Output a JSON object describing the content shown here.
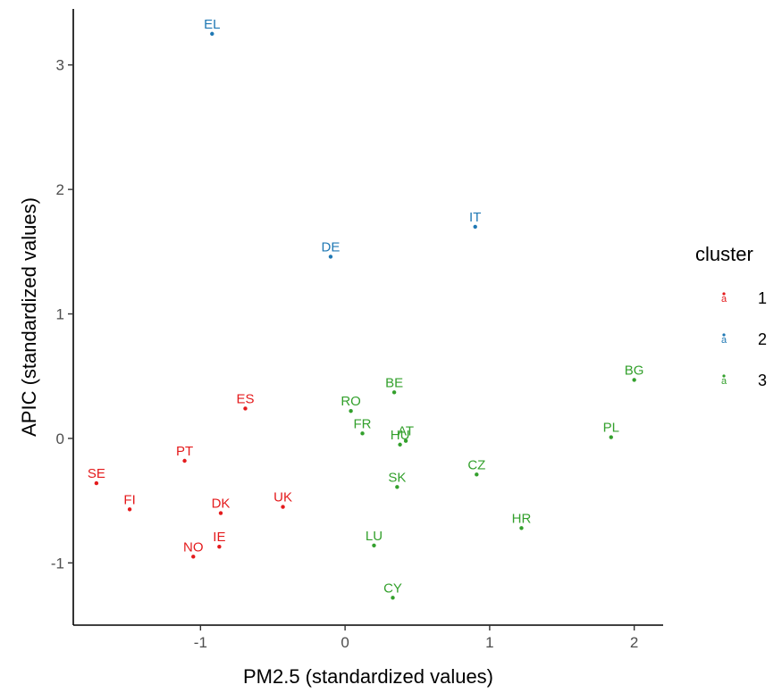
{
  "chart_data": {
    "type": "scatter",
    "title": "",
    "xlabel": "PM2.5 (standardized values)",
    "ylabel": "APIC  (standardized values)",
    "xlim": [
      -1.88,
      2.2
    ],
    "ylim": [
      -1.5,
      3.45
    ],
    "x_ticks": [
      -1,
      0,
      1,
      2
    ],
    "y_ticks": [
      -1,
      0,
      1,
      2,
      3
    ],
    "x_tick_labels": [
      "-1",
      "0",
      "1",
      "2"
    ],
    "y_tick_labels": [
      "-1",
      "0",
      "1",
      "2",
      "3"
    ],
    "grid": false,
    "legend": {
      "title": "cluster",
      "position": "right",
      "entries": [
        {
          "key": "1",
          "label": "1",
          "color": "#e41a1c",
          "glyph": "a"
        },
        {
          "key": "2",
          "label": "2",
          "color": "#1f78b4",
          "glyph": "a"
        },
        {
          "key": "3",
          "label": "3",
          "color": "#33a02c",
          "glyph": "a"
        }
      ]
    },
    "series": [
      {
        "cluster": "1",
        "color": "#e41a1c",
        "points": [
          {
            "label": "SE",
            "x": -1.72,
            "y": -0.36
          },
          {
            "label": "FI",
            "x": -1.49,
            "y": -0.57
          },
          {
            "label": "PT",
            "x": -1.11,
            "y": -0.18
          },
          {
            "label": "ES",
            "x": -0.69,
            "y": 0.24
          },
          {
            "label": "DK",
            "x": -0.86,
            "y": -0.6
          },
          {
            "label": "UK",
            "x": -0.43,
            "y": -0.55
          },
          {
            "label": "NO",
            "x": -1.05,
            "y": -0.95
          },
          {
            "label": "IE",
            "x": -0.87,
            "y": -0.87
          }
        ]
      },
      {
        "cluster": "2",
        "color": "#1f78b4",
        "points": [
          {
            "label": "EL",
            "x": -0.92,
            "y": 3.25
          },
          {
            "label": "DE",
            "x": -0.1,
            "y": 1.46
          },
          {
            "label": "IT",
            "x": 0.9,
            "y": 1.7
          }
        ]
      },
      {
        "cluster": "3",
        "color": "#33a02c",
        "points": [
          {
            "label": "BE",
            "x": 0.34,
            "y": 0.37
          },
          {
            "label": "RO",
            "x": 0.04,
            "y": 0.22
          },
          {
            "label": "FR",
            "x": 0.12,
            "y": 0.04
          },
          {
            "label": "AT",
            "x": 0.42,
            "y": -0.02
          },
          {
            "label": "HU",
            "x": 0.38,
            "y": -0.05
          },
          {
            "label": "SK",
            "x": 0.36,
            "y": -0.39
          },
          {
            "label": "CZ",
            "x": 0.91,
            "y": -0.29
          },
          {
            "label": "LU",
            "x": 0.2,
            "y": -0.86
          },
          {
            "label": "CY",
            "x": 0.33,
            "y": -1.28
          },
          {
            "label": "HR",
            "x": 1.22,
            "y": -0.72
          },
          {
            "label": "PL",
            "x": 1.84,
            "y": 0.01
          },
          {
            "label": "BG",
            "x": 2.0,
            "y": 0.47
          }
        ]
      }
    ]
  }
}
